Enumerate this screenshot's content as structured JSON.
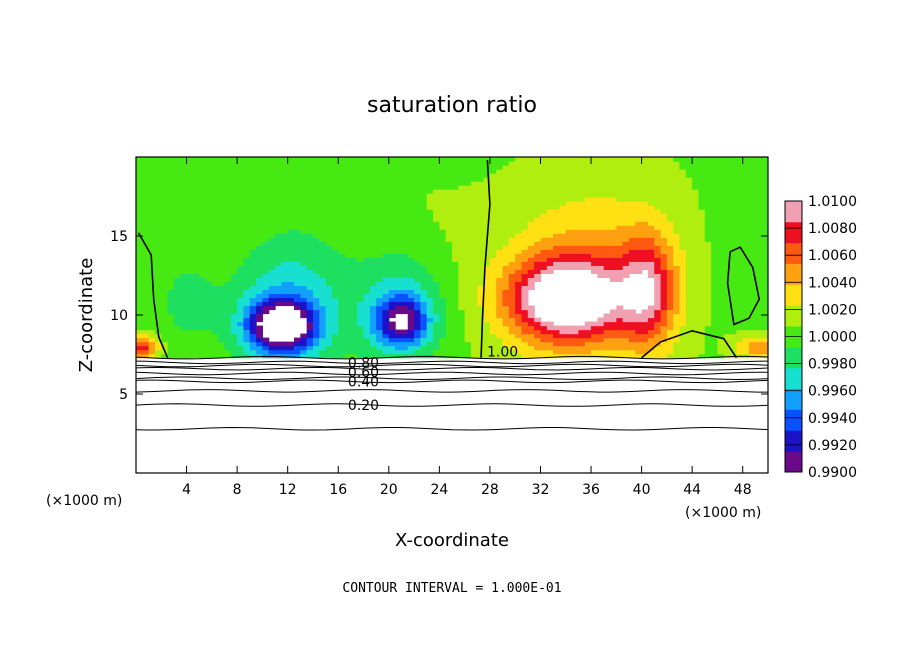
{
  "chart_data": {
    "type": "heatmap",
    "title": "saturation ratio",
    "xlabel": "X-coordinate",
    "ylabel": "Z-coordinate",
    "x_unit_note": "(×1000 m)",
    "z_unit_note": "(×1000 m)",
    "footer": "CONTOUR INTERVAL = 1.000E-01",
    "xlim": [
      0,
      50
    ],
    "ylim": [
      0,
      20
    ],
    "x_ticks": [
      4,
      8,
      12,
      16,
      20,
      24,
      28,
      32,
      36,
      40,
      44,
      48
    ],
    "y_ticks": [
      5,
      10,
      15
    ],
    "colorbar": {
      "min": 0.99,
      "max": 1.01,
      "levels": [
        0.99,
        0.992,
        0.994,
        0.996,
        0.998,
        1.0,
        1.002,
        1.004,
        1.006,
        1.008,
        1.01
      ],
      "labels": [
        "0.9900",
        "0.9920",
        "0.9940",
        "0.9960",
        "0.9980",
        "1.0000",
        "1.0020",
        "1.0040",
        "1.0060",
        "1.0080",
        "1.0100"
      ],
      "colors": [
        "#6a0a8a",
        "#1c12c8",
        "#0a52ff",
        "#12a0ff",
        "#18e0d0",
        "#1ee060",
        "#46ea12",
        "#b0ee10",
        "#ffe012",
        "#ffa010",
        "#ff5a10",
        "#ee1020",
        "#f0a0b0"
      ]
    },
    "contour_labels": [
      "0.20",
      "0.40",
      "0.60",
      "0.80",
      "1.00"
    ],
    "subsaturated_layer": {
      "z_top": 7.3,
      "contour_levels_z": [
        {
          "level": 0.2,
          "z": 4.3
        },
        {
          "level": 0.4,
          "z": 5.8
        },
        {
          "level": 0.6,
          "z": 6.3
        },
        {
          "level": 0.8,
          "z": 6.8
        }
      ],
      "extra_lines_z": [
        2.8,
        5.2,
        6.0,
        6.6,
        7.0
      ]
    },
    "features": [
      {
        "kind": "dry",
        "x": 11.5,
        "z": 9.3,
        "sx": 2.6,
        "sz": 1.6,
        "amp": -0.012
      },
      {
        "kind": "dry",
        "x": 21.0,
        "z": 9.6,
        "sx": 2.0,
        "sz": 1.5,
        "amp": -0.008
      },
      {
        "kind": "dry",
        "x": 12.0,
        "z": 10.5,
        "sx": 4.5,
        "sz": 4.0,
        "amp": -0.004
      },
      {
        "kind": "dry",
        "x": 21.0,
        "z": 10.5,
        "sx": 3.5,
        "sz": 3.5,
        "amp": -0.004
      },
      {
        "kind": "dry",
        "x": 4.0,
        "z": 11.0,
        "sx": 2.5,
        "sz": 3.0,
        "amp": -0.002
      },
      {
        "kind": "moist",
        "x": 34.0,
        "z": 11.0,
        "sx": 4.5,
        "sz": 2.5,
        "amp": 0.011
      },
      {
        "kind": "moist",
        "x": 40.5,
        "z": 11.5,
        "sx": 2.2,
        "sz": 3.5,
        "amp": 0.007
      },
      {
        "kind": "moist",
        "x": 35.0,
        "z": 12.5,
        "sx": 6.5,
        "sz": 5.5,
        "amp": 0.004
      },
      {
        "kind": "moist",
        "x": 0.5,
        "z": 8.0,
        "sx": 1.2,
        "sz": 0.7,
        "amp": 0.007
      },
      {
        "kind": "moist",
        "x": 49.5,
        "z": 8.0,
        "sx": 2.0,
        "sz": 0.7,
        "amp": 0.005
      }
    ]
  }
}
